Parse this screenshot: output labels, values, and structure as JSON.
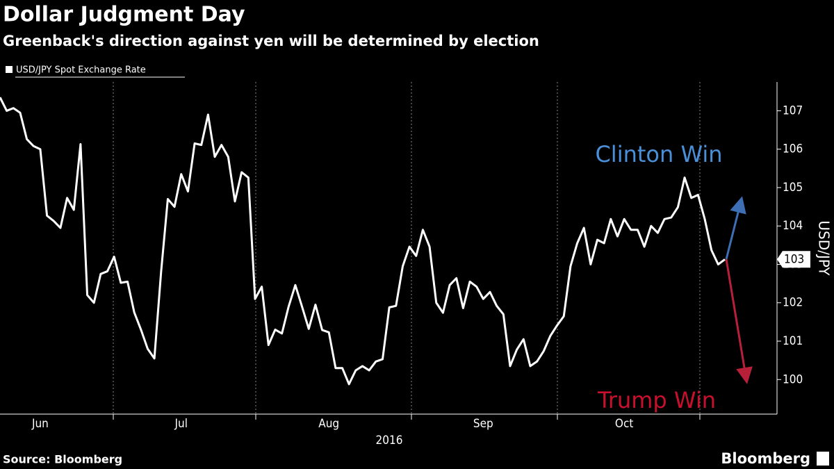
{
  "chart_data": {
    "type": "line",
    "title": "Dollar Judgment Day",
    "subtitle": "Greenback's direction against yen will be determined by election",
    "legend": "USD/JPY Spot Exchange Rate",
    "ylabel": "USD/JPY",
    "xlabel": "2016",
    "source": "Source: Bloomberg",
    "brand": "Bloomberg",
    "annotations": [
      "Clinton Win",
      "Trump Win"
    ],
    "last_value_label": "103",
    "color": "#ffffff",
    "categories": [
      null,
      null,
      null,
      null,
      null,
      null,
      "Jun",
      null,
      null,
      null,
      null,
      null,
      null,
      null,
      null,
      null,
      null,
      null,
      null,
      null,
      null,
      null,
      null,
      null,
      null,
      null,
      null,
      "Jul",
      null,
      null,
      null,
      null,
      null,
      null,
      null,
      null,
      null,
      null,
      null,
      null,
      null,
      null,
      null,
      null,
      null,
      null,
      null,
      null,
      null,
      "Aug",
      null,
      null,
      null,
      null,
      null,
      null,
      null,
      null,
      null,
      null,
      null,
      null,
      null,
      null,
      null,
      null,
      null,
      null,
      null,
      null,
      null,
      null,
      "Sep",
      null,
      null,
      null,
      null,
      null,
      null,
      null,
      null,
      null,
      null,
      null,
      null,
      null,
      null,
      null,
      null,
      null,
      null,
      null,
      null,
      "Oct",
      null,
      null,
      null,
      null,
      null,
      null,
      null,
      null,
      null,
      null,
      null,
      null,
      null,
      null,
      null
    ],
    "values": [
      107.35,
      107.0,
      107.07,
      106.95,
      106.26,
      106.08,
      106.0,
      104.27,
      104.13,
      103.95,
      104.73,
      104.42,
      106.13,
      102.2,
      102.0,
      102.75,
      102.82,
      103.2,
      102.52,
      102.55,
      101.75,
      101.3,
      100.8,
      100.55,
      102.8,
      104.7,
      104.5,
      105.35,
      104.9,
      106.15,
      106.11,
      106.9,
      105.8,
      106.11,
      105.8,
      104.64,
      105.4,
      105.26,
      102.1,
      102.42,
      100.9,
      101.3,
      101.2,
      101.9,
      102.46,
      101.9,
      101.32,
      101.95,
      101.29,
      101.23,
      100.3,
      100.3,
      99.88,
      100.24,
      100.35,
      100.24,
      100.47,
      100.53,
      101.88,
      101.92,
      102.95,
      103.46,
      103.22,
      103.9,
      103.46,
      102.0,
      101.74,
      102.46,
      102.64,
      101.86,
      102.55,
      102.42,
      102.1,
      102.28,
      101.92,
      101.7,
      100.35,
      100.78,
      101.05,
      100.35,
      100.47,
      100.74,
      101.14,
      101.41,
      101.65,
      102.95,
      103.55,
      103.95,
      103.0,
      103.64,
      103.55,
      104.18,
      103.73,
      104.18,
      103.9,
      103.9,
      103.46,
      104.0,
      103.82,
      104.18,
      104.22,
      104.49,
      105.26,
      104.73,
      104.81,
      104.18,
      103.37,
      103.0,
      103.13
    ],
    "ylim": [
      99.1,
      107.75
    ],
    "yticks": [
      100,
      101,
      102,
      103,
      104,
      105,
      106,
      107
    ]
  }
}
